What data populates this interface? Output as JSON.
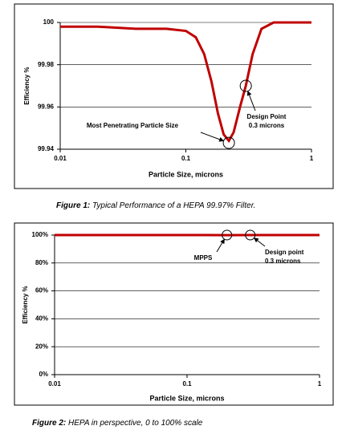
{
  "chart_data": [
    {
      "type": "line",
      "xscale": "log",
      "x_label": "Particle Size, microns",
      "y_label": "Efficiency %",
      "xlim": [
        0.01,
        1
      ],
      "xticks": [
        0.01,
        0.1,
        1
      ],
      "ylim": [
        99.94,
        100
      ],
      "yticks": [
        99.94,
        99.96,
        99.98,
        100
      ],
      "grid": true,
      "series": [
        {
          "color": "#c00000",
          "x": [
            0.01,
            0.02,
            0.04,
            0.07,
            0.1,
            0.12,
            0.14,
            0.16,
            0.18,
            0.2,
            0.22,
            0.24,
            0.27,
            0.3,
            0.34,
            0.4,
            0.5,
            0.7,
            1
          ],
          "values": [
            99.998,
            99.998,
            99.997,
            99.997,
            99.996,
            99.993,
            99.985,
            99.972,
            99.957,
            99.947,
            99.944,
            99.948,
            99.96,
            99.97,
            99.985,
            99.997,
            100,
            100,
            100
          ]
        }
      ],
      "annotations": [
        {
          "text": [
            "Most Penetrating Particle Size"
          ],
          "x": 0.22,
          "y": 99.943
        },
        {
          "text": [
            "Design Point",
            "0.3 microns"
          ],
          "x": 0.3,
          "y": 99.97
        }
      ],
      "caption": {
        "label": "Figure 1:",
        "text": " Typical Performance of a HEPA 99.97% Filter."
      }
    },
    {
      "type": "line",
      "xscale": "log",
      "x_label": "Particle Size, microns",
      "y_label": "Efficiency %",
      "xlim": [
        0.01,
        1
      ],
      "xticks": [
        0.01,
        0.1,
        1
      ],
      "ylim": [
        0,
        100
      ],
      "yticks": [
        {
          "value": 0,
          "label": "0%"
        },
        {
          "value": 20,
          "label": "20%"
        },
        {
          "value": 40,
          "label": "40%"
        },
        {
          "value": 60,
          "label": "60%"
        },
        {
          "value": 80,
          "label": "80%"
        },
        {
          "value": 100,
          "label": "100%"
        }
      ],
      "grid": true,
      "series": [
        {
          "color": "#c00000",
          "x": [
            0.01,
            0.1,
            0.2,
            0.3,
            1
          ],
          "values": [
            99.998,
            99.996,
            99.944,
            99.97,
            100
          ]
        }
      ],
      "annotations": [
        {
          "text": [
            "MPPS"
          ],
          "x": 0.2,
          "y": 100
        },
        {
          "text": [
            "Design point",
            "0.3 microns"
          ],
          "x": 0.3,
          "y": 100
        }
      ],
      "caption": {
        "label": "Figure 2:",
        "text": " HEPA in perspective, 0 to 100% scale"
      }
    }
  ]
}
